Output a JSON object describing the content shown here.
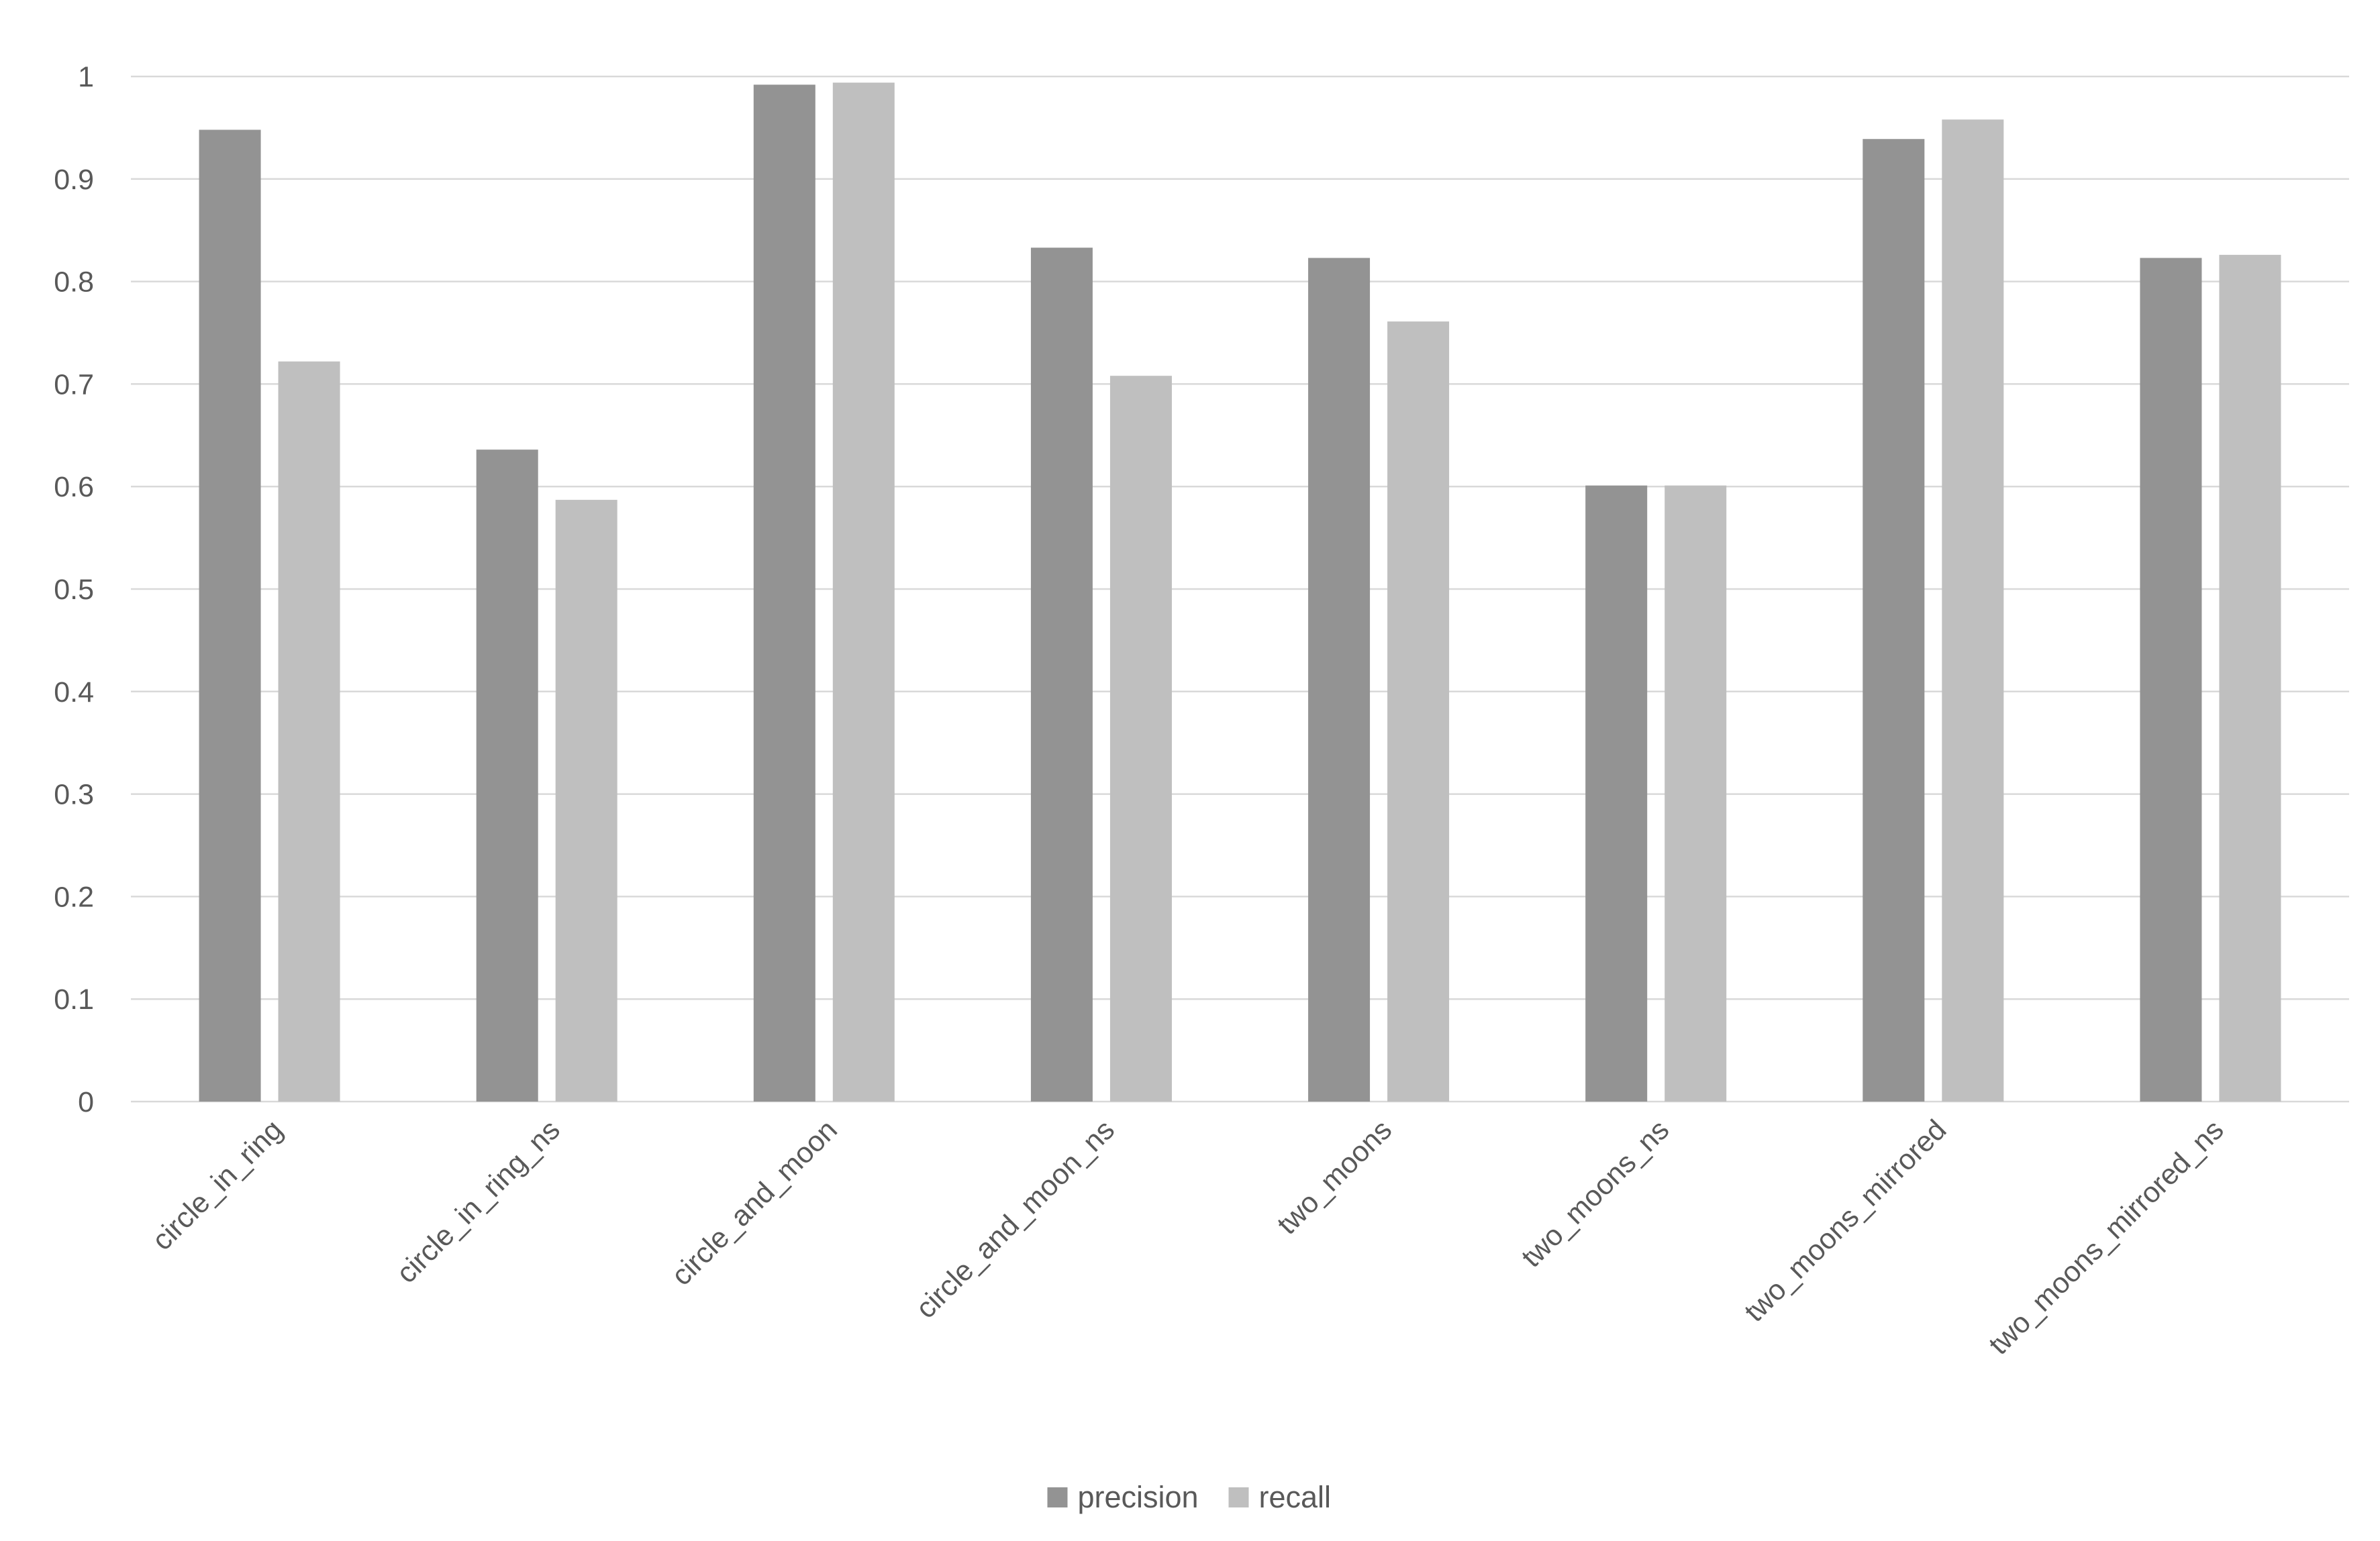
{
  "chart_data": {
    "type": "bar",
    "categories": [
      "circle_in_ring",
      "circle_in_ring_ns",
      "circle_and_moon",
      "circle_and_moon_ns",
      "two_moons",
      "two_moons_ns",
      "two_moons_mirrored",
      "two_moons_mirrored_ns"
    ],
    "series": [
      {
        "name": "precision",
        "color": "#939393",
        "values": [
          0.948,
          0.636,
          0.992,
          0.833,
          0.823,
          0.601,
          0.939,
          0.823
        ]
      },
      {
        "name": "recall",
        "color": "#bfbfbf",
        "values": [
          0.722,
          0.587,
          0.994,
          0.708,
          0.761,
          0.601,
          0.958,
          0.826
        ]
      }
    ],
    "y_ticks": [
      "0",
      "0.1",
      "0.2",
      "0.3",
      "0.4",
      "0.5",
      "0.6",
      "0.7",
      "0.8",
      "0.9",
      "1"
    ],
    "ylim": [
      0,
      1
    ],
    "grid": true,
    "gridline_color": "#d9d9d9",
    "legend_position": "bottom-center",
    "title": "",
    "xlabel": "",
    "ylabel": ""
  }
}
